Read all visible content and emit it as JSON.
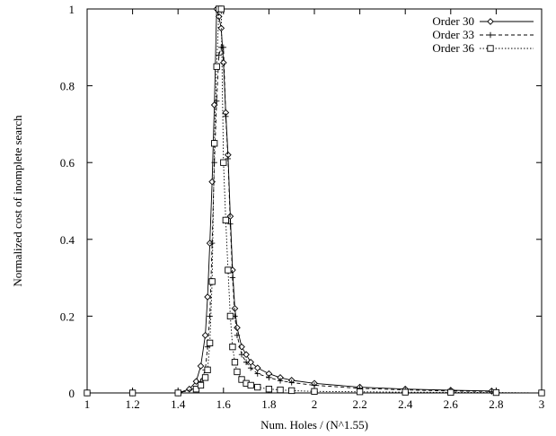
{
  "chart_data": {
    "type": "line",
    "title": "",
    "xlabel": "Num. Holes / (N^1.55)",
    "ylabel": "Normalized cost of inomplete search",
    "xlim": [
      1,
      3
    ],
    "ylim": [
      0,
      1
    ],
    "xticks": [
      "1",
      "1.2",
      "1.4",
      "1.6",
      "1.8",
      "2",
      "2.2",
      "2.4",
      "2.6",
      "2.8",
      "3"
    ],
    "yticks": [
      "0",
      "0.2",
      "0.4",
      "0.6",
      "0.8",
      "1"
    ],
    "grid": false,
    "legend_position": "top-right",
    "series": [
      {
        "name": "Order 30",
        "marker": "diamond",
        "line_style": "solid",
        "color": "#000000",
        "x": [
          1.0,
          1.2,
          1.4,
          1.45,
          1.48,
          1.5,
          1.52,
          1.53,
          1.54,
          1.55,
          1.56,
          1.57,
          1.58,
          1.59,
          1.6,
          1.61,
          1.62,
          1.63,
          1.64,
          1.65,
          1.66,
          1.68,
          1.7,
          1.72,
          1.75,
          1.8,
          1.85,
          1.9,
          2.0,
          2.2,
          2.4,
          2.6,
          2.78
        ],
        "y": [
          0.0,
          0.0,
          0.0,
          0.01,
          0.03,
          0.07,
          0.15,
          0.25,
          0.39,
          0.55,
          0.75,
          1.0,
          0.98,
          0.95,
          0.86,
          0.73,
          0.62,
          0.46,
          0.32,
          0.22,
          0.17,
          0.12,
          0.1,
          0.08,
          0.065,
          0.05,
          0.04,
          0.033,
          0.025,
          0.015,
          0.01,
          0.007,
          0.005
        ]
      },
      {
        "name": "Order 33",
        "marker": "plus",
        "line_style": "dashed",
        "color": "#000000",
        "x": [
          1.0,
          1.2,
          1.4,
          1.47,
          1.5,
          1.52,
          1.53,
          1.54,
          1.55,
          1.56,
          1.57,
          1.58,
          1.59,
          1.6,
          1.61,
          1.62,
          1.63,
          1.64,
          1.65,
          1.66,
          1.68,
          1.7,
          1.72,
          1.75,
          1.8,
          1.85,
          1.9,
          2.0,
          2.2,
          2.4,
          2.6,
          2.78
        ],
        "y": [
          0.0,
          0.0,
          0.0,
          0.01,
          0.03,
          0.06,
          0.12,
          0.2,
          0.39,
          0.6,
          0.76,
          0.88,
          0.9,
          0.9,
          0.72,
          0.61,
          0.44,
          0.3,
          0.2,
          0.15,
          0.1,
          0.08,
          0.065,
          0.05,
          0.04,
          0.032,
          0.027,
          0.02,
          0.012,
          0.008,
          0.005,
          0.004
        ]
      },
      {
        "name": "Order 36",
        "marker": "square",
        "line_style": "dotted",
        "color": "#000000",
        "x": [
          1.0,
          1.2,
          1.4,
          1.48,
          1.5,
          1.52,
          1.53,
          1.54,
          1.55,
          1.56,
          1.57,
          1.58,
          1.59,
          1.6,
          1.61,
          1.62,
          1.63,
          1.64,
          1.65,
          1.66,
          1.68,
          1.7,
          1.72,
          1.75,
          1.8,
          1.85,
          1.9,
          2.0,
          2.2,
          2.4,
          2.6,
          2.8,
          3.0
        ],
        "y": [
          0.0,
          0.0,
          0.0,
          0.01,
          0.02,
          0.04,
          0.06,
          0.13,
          0.29,
          0.65,
          0.85,
          1.0,
          1.0,
          0.6,
          0.45,
          0.32,
          0.2,
          0.12,
          0.08,
          0.055,
          0.035,
          0.025,
          0.02,
          0.015,
          0.01,
          0.008,
          0.006,
          0.004,
          0.003,
          0.002,
          0.0015,
          0.001,
          0.0
        ]
      }
    ]
  }
}
